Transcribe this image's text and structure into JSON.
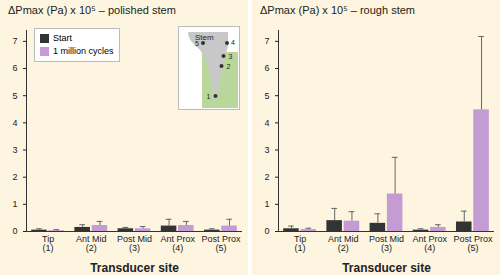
{
  "chart_data": [
    {
      "type": "bar",
      "title": "ΔPmax (Pa) x 10⁵ – polished stem",
      "x_label": "Transducer site",
      "categories": [
        "Tip\n(1)",
        "Ant Mid\n(2)",
        "Post Mid\n(3)",
        "Ant Prox\n(4)",
        "Post Prox\n(5)"
      ],
      "series": [
        {
          "name": "Start",
          "color": "#333333",
          "values": [
            0.05,
            0.15,
            0.1,
            0.2,
            0.05
          ],
          "errors": [
            0.05,
            0.1,
            0.05,
            0.25,
            0.05
          ]
        },
        {
          "name": "1 million cycles",
          "color": "#c49bd3",
          "values": [
            0.03,
            0.22,
            0.1,
            0.22,
            0.2
          ],
          "errors": [
            0.04,
            0.15,
            0.08,
            0.15,
            0.25
          ]
        }
      ],
      "ylim": [
        0,
        7.4
      ],
      "yticks": [
        0,
        1,
        2,
        3,
        4,
        5,
        6,
        7
      ],
      "legend": "top-left"
    },
    {
      "type": "bar",
      "title": "ΔPmax (Pa) x 10⁵ – rough stem",
      "x_label": "Transducer site",
      "categories": [
        "Tip\n(1)",
        "Ant Mid\n(2)",
        "Post Mid\n(3)",
        "Ant Prox\n(4)",
        "Post Prox\n(5)"
      ],
      "series": [
        {
          "name": "Start",
          "color": "#333333",
          "values": [
            0.1,
            0.4,
            0.3,
            0.05,
            0.35
          ],
          "errors": [
            0.1,
            0.45,
            0.35,
            0.05,
            0.4
          ]
        },
        {
          "name": "1 million cycles",
          "color": "#c49bd3",
          "values": [
            0.07,
            0.38,
            1.38,
            0.15,
            4.48
          ],
          "errors": [
            0.05,
            0.35,
            1.35,
            0.1,
            2.7
          ]
        }
      ],
      "ylim": [
        0,
        7.4
      ],
      "yticks": [
        0,
        1,
        2,
        3,
        4,
        5,
        6,
        7
      ]
    }
  ],
  "inset": {
    "label": "Stem",
    "sites": [
      "1",
      "2",
      "3",
      "4",
      "5"
    ]
  }
}
